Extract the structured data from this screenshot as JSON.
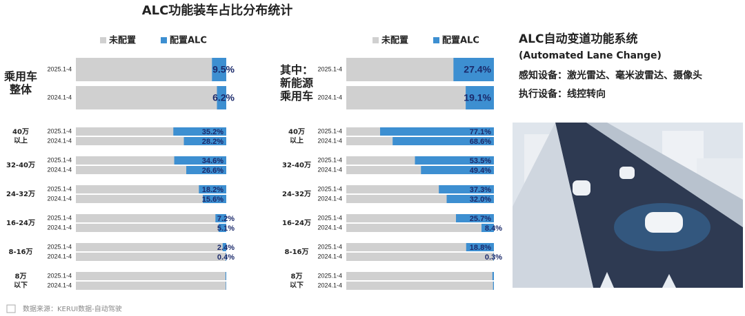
{
  "title": "ALC功能装车占比分布统计",
  "chart_data": [
    {
      "type": "bar",
      "xlim": [
        0,
        100
      ],
      "legend": [
        {
          "name": "未配置",
          "color": "#d0d0d0"
        },
        {
          "name": "配置ALC",
          "color": "#3d8fd1"
        }
      ],
      "groups": [
        {
          "label": [
            "乘用车",
            "整体"
          ],
          "periods": [
            "2025.1-4",
            "2024.1-4"
          ],
          "values": [
            9.5,
            6.2
          ],
          "value_labels": [
            "9.5%",
            "6.2%"
          ]
        },
        {
          "label": [
            "40万",
            "以上"
          ],
          "periods": [
            "2025.1-4",
            "2024.1-4"
          ],
          "values": [
            35.2,
            28.2
          ],
          "value_labels": [
            "35.2%",
            "28.2%"
          ]
        },
        {
          "label": [
            "32-40万"
          ],
          "periods": [
            "2025.1-4",
            "2024.1-4"
          ],
          "values": [
            34.6,
            26.6
          ],
          "value_labels": [
            "34.6%",
            "26.6%"
          ]
        },
        {
          "label": [
            "24-32万"
          ],
          "periods": [
            "2025.1-4",
            "2024.1-4"
          ],
          "values": [
            18.2,
            15.6
          ],
          "value_labels": [
            "18.2%",
            "15.6%"
          ]
        },
        {
          "label": [
            "16-24万"
          ],
          "periods": [
            "2025.1-4",
            "2024.1-4"
          ],
          "values": [
            7.2,
            5.1
          ],
          "value_labels": [
            "7.2%",
            "5.1%"
          ]
        },
        {
          "label": [
            "8-16万"
          ],
          "periods": [
            "2025.1-4",
            "2024.1-4"
          ],
          "values": [
            2.4,
            0.4
          ],
          "value_labels": [
            "2.4%",
            "0.4%"
          ]
        },
        {
          "label": [
            "8万",
            "以下"
          ],
          "periods": [
            "2025.1-4",
            "2024.1-4"
          ],
          "values": [
            0.5,
            0.3
          ],
          "value_labels": [
            null,
            null
          ]
        }
      ]
    },
    {
      "type": "bar",
      "xlim": [
        0,
        100
      ],
      "legend": [
        {
          "name": "未配置",
          "color": "#d0d0d0"
        },
        {
          "name": "配置ALC",
          "color": "#3d8fd1"
        }
      ],
      "groups": [
        {
          "label": [
            "其中：",
            "新能源",
            "乘用车"
          ],
          "periods": [
            "2025.1-4",
            "2024.1-4"
          ],
          "values": [
            27.4,
            19.1
          ],
          "value_labels": [
            "27.4%",
            "19.1%"
          ]
        },
        {
          "label": [
            "40万",
            "以上"
          ],
          "periods": [
            "2025.1-4",
            "2024.1-4"
          ],
          "values": [
            77.1,
            68.6
          ],
          "value_labels": [
            "77.1%",
            "68.6%"
          ]
        },
        {
          "label": [
            "32-40万"
          ],
          "periods": [
            "2025.1-4",
            "2024.1-4"
          ],
          "values": [
            53.5,
            49.4
          ],
          "value_labels": [
            "53.5%",
            "49.4%"
          ]
        },
        {
          "label": [
            "24-32万"
          ],
          "periods": [
            "2025.1-4",
            "2024.1-4"
          ],
          "values": [
            37.3,
            32.0
          ],
          "value_labels": [
            "37.3%",
            "32.0%"
          ]
        },
        {
          "label": [
            "16-24万"
          ],
          "periods": [
            "2025.1-4",
            "2024.1-4"
          ],
          "values": [
            25.7,
            8.4
          ],
          "value_labels": [
            "25.7%",
            "8.4%"
          ]
        },
        {
          "label": [
            "8-16万"
          ],
          "periods": [
            "2025.1-4",
            "2024.1-4"
          ],
          "values": [
            18.8,
            0.3
          ],
          "value_labels": [
            "18.8%",
            "0.3%"
          ]
        },
        {
          "label": [
            "8万",
            "以下"
          ],
          "periods": [
            "2025.1-4",
            "2024.1-4"
          ],
          "values": [
            1.0,
            0.6
          ],
          "value_labels": [
            null,
            null
          ]
        }
      ]
    }
  ],
  "info": {
    "title": "ALC自动变道功能系统",
    "subtitle": "(Automated Lane Change)",
    "lines": [
      "感知设备：激光雷达、毫米波雷达、摄像头",
      "执行设备：线控转向"
    ]
  },
  "source": "数据来源：KERUI数据-自动驾驶"
}
